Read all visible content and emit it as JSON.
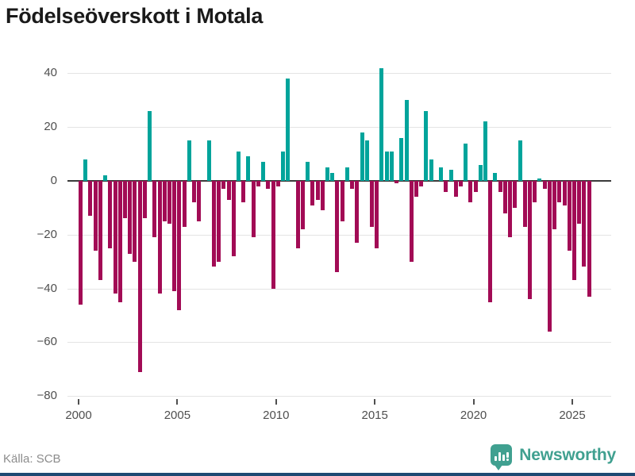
{
  "page": {
    "title": "Födelseöverskott i Motala",
    "source_label": "Källa: SCB",
    "brand_name": "Newsworthy"
  },
  "chart_data": {
    "type": "bar",
    "title": "Födelseöverskott i Motala",
    "frequency": "quarterly",
    "x_start": "2000Q1",
    "x_end": "2025Q4",
    "xlabel": "",
    "ylabel": "",
    "ylim": [
      -85,
      45
    ],
    "grid": true,
    "yticks": [
      40,
      20,
      0,
      -20,
      -40,
      -60,
      -80
    ],
    "xticks": [
      2000,
      2005,
      2010,
      2015,
      2020,
      2025
    ],
    "positive_color": "#00a49b",
    "negative_color": "#a20b55",
    "series_by_year": [
      {
        "year": 2000,
        "values": [
          -46,
          8,
          -13,
          -26
        ]
      },
      {
        "year": 2001,
        "values": [
          -37,
          2,
          -25,
          -42
        ]
      },
      {
        "year": 2002,
        "values": [
          -45,
          -14,
          -27,
          -30
        ]
      },
      {
        "year": 2003,
        "values": [
          -71,
          -14,
          26,
          -21
        ]
      },
      {
        "year": 2004,
        "values": [
          -42,
          -15,
          -16,
          -41
        ]
      },
      {
        "year": 2005,
        "values": [
          -48,
          -17,
          15,
          -8
        ]
      },
      {
        "year": 2006,
        "values": [
          -15,
          0,
          15,
          -32
        ]
      },
      {
        "year": 2007,
        "values": [
          -30,
          -3,
          -7,
          -28
        ]
      },
      {
        "year": 2008,
        "values": [
          11,
          -8,
          9,
          -21
        ]
      },
      {
        "year": 2009,
        "values": [
          -2,
          7,
          -3,
          -40
        ]
      },
      {
        "year": 2010,
        "values": [
          -2,
          11,
          38,
          0
        ]
      },
      {
        "year": 2011,
        "values": [
          -25,
          -18,
          7,
          -9
        ]
      },
      {
        "year": 2012,
        "values": [
          -7,
          -11,
          5,
          3
        ]
      },
      {
        "year": 2013,
        "values": [
          -34,
          -15,
          5,
          -3
        ]
      },
      {
        "year": 2014,
        "values": [
          -23,
          18,
          15,
          -17
        ]
      },
      {
        "year": 2015,
        "values": [
          -25,
          42,
          11,
          11
        ]
      },
      {
        "year": 2016,
        "values": [
          -1,
          16,
          30,
          -30
        ]
      },
      {
        "year": 2017,
        "values": [
          -6,
          -2,
          26,
          8
        ]
      },
      {
        "year": 2018,
        "values": [
          0,
          5,
          -4,
          4
        ]
      },
      {
        "year": 2019,
        "values": [
          -6,
          -2,
          14,
          -8
        ]
      },
      {
        "year": 2020,
        "values": [
          -4,
          6,
          22,
          -45
        ]
      },
      {
        "year": 2021,
        "values": [
          3,
          -4,
          -12,
          -21
        ]
      },
      {
        "year": 2022,
        "values": [
          -10,
          15,
          -17,
          -44
        ]
      },
      {
        "year": 2023,
        "values": [
          -8,
          1,
          -3,
          -56
        ]
      },
      {
        "year": 2024,
        "values": [
          -18,
          -8,
          -9,
          -26
        ]
      },
      {
        "year": 2025,
        "values": [
          -37,
          -16,
          -32,
          -43
        ]
      }
    ]
  }
}
